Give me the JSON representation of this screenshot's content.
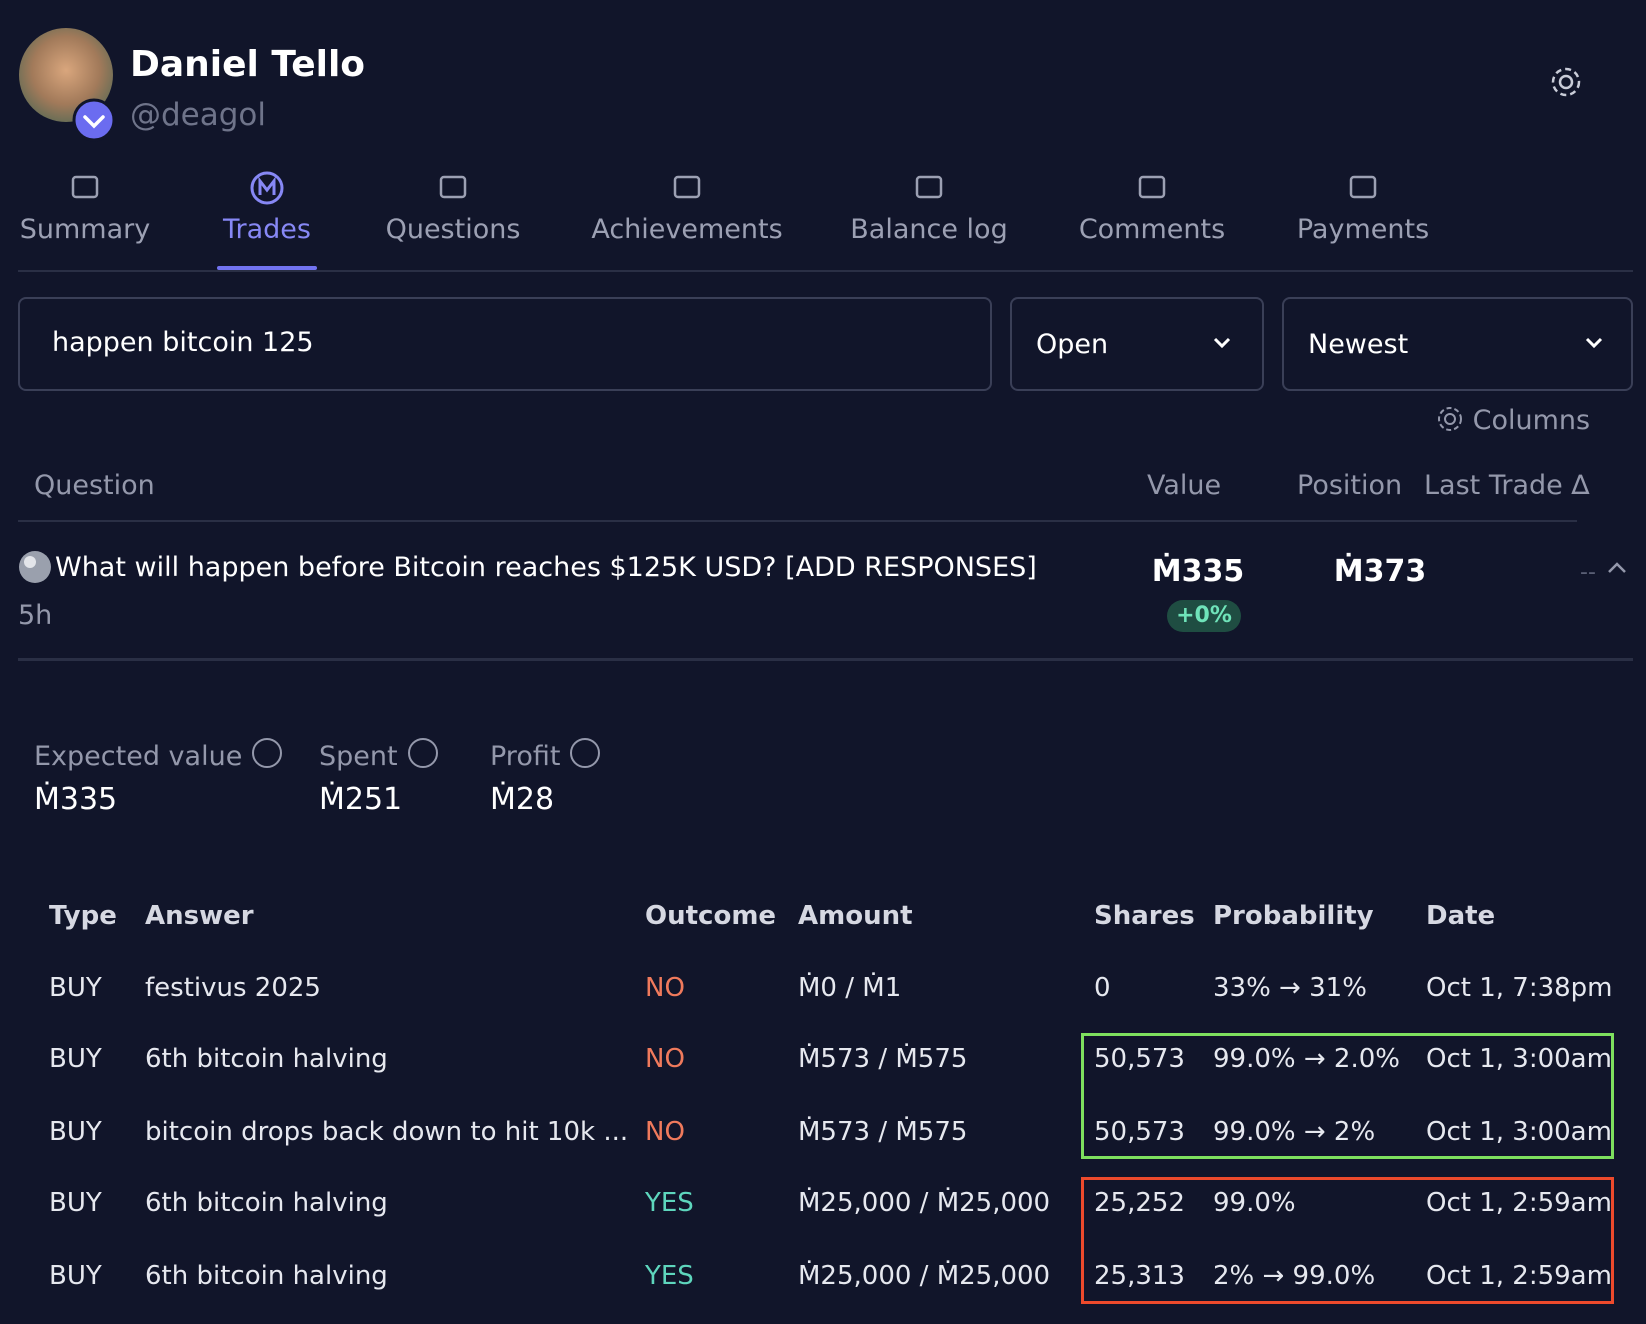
{
  "profile": {
    "name": "Daniel Tello",
    "handle": "@deagol"
  },
  "tabs": [
    "Summary",
    "Trades",
    "Questions",
    "Achievements",
    "Balance log",
    "Comments",
    "Payments"
  ],
  "search": "happen bitcoin 125",
  "filters": {
    "status": "Open",
    "sort": "Newest"
  },
  "columns_button": "Columns",
  "list_header": [
    "Question",
    "Value",
    "Position",
    "Last Trade ∆"
  ],
  "question": {
    "title": "What will happen before Bitcoin reaches $125K USD? [ADD RESPONSES]",
    "age": "5h",
    "value": "Ṁ335",
    "change": "+0%",
    "position": "Ṁ373",
    "last_trade": "--"
  },
  "stats": [
    {
      "label": "Expected value",
      "value": "Ṁ335"
    },
    {
      "label": "Spent",
      "value": "Ṁ251"
    },
    {
      "label": "Profit",
      "value": "Ṁ28"
    }
  ],
  "trades": {
    "headers": [
      "Type",
      "Answer",
      "Outcome",
      "Amount",
      "Shares",
      "Probability",
      "Date"
    ],
    "rows": [
      {
        "cells": [
          "BUY",
          "festivus 2025",
          "NO",
          "Ṁ0 / Ṁ1",
          "0",
          "33% → 31%",
          "Oct 1, 7:38pm"
        ],
        "outcome_color": "#f07a5c"
      },
      {
        "cells": [
          "BUY",
          "6th bitcoin halving",
          "NO",
          "Ṁ573 / Ṁ575",
          "50,573",
          "99.0% → 2.0%",
          "Oct 1, 3:00am"
        ],
        "outcome_color": "#f07a5c"
      },
      {
        "cells": [
          "BUY",
          "bitcoin drops back down to hit 10k ...",
          "NO",
          "Ṁ573 / Ṁ575",
          "50,573",
          "99.0% → 2%",
          "Oct 1, 3:00am"
        ],
        "outcome_color": "#f07a5c"
      },
      {
        "cells": [
          "BUY",
          "6th bitcoin halving",
          "YES",
          "Ṁ25,000 / Ṁ25,000",
          "25,252",
          "99.0%",
          "Oct 1, 2:59am"
        ],
        "outcome_color": "#5ed6bd"
      },
      {
        "cells": [
          "BUY",
          "6th bitcoin halving",
          "YES",
          "Ṁ25,000 / Ṁ25,000",
          "25,313",
          "2% → 99.0%",
          "Oct 1, 2:59am"
        ],
        "outcome_color": "#5ed6bd"
      }
    ]
  }
}
